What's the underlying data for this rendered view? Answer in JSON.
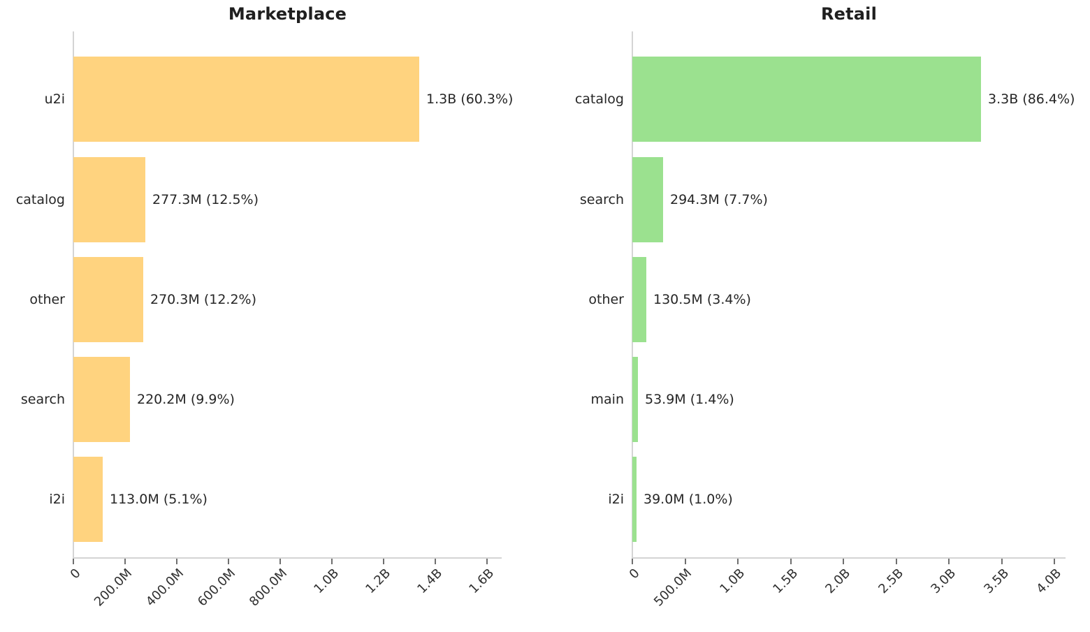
{
  "figure": {
    "background": "#ffffff"
  },
  "colors": {
    "text": "#262626",
    "tick_text": "#303030",
    "spine": "#d4d4d4",
    "tick_mark": "#6f6f6f",
    "marketplace_bar": "#FFD37F",
    "retail_bar": "#9BE18F"
  },
  "chart_data": [
    {
      "type": "bar",
      "orientation": "horizontal",
      "title": "Marketplace",
      "bar_color": "#FFD37F",
      "categories": [
        "u2i",
        "catalog",
        "other",
        "search",
        "i2i"
      ],
      "values_millions": [
        1337.5,
        277.3,
        270.3,
        220.2,
        113.0
      ],
      "percents": [
        60.3,
        12.5,
        12.2,
        9.9,
        5.1
      ],
      "bar_labels": [
        "1.3B (60.3%)",
        "277.3M (12.5%)",
        "270.3M (12.2%)",
        "220.2M (9.9%)",
        "113.0M (5.1%)"
      ],
      "x_ticks": [
        "0",
        "200.0M",
        "400.0M",
        "600.0M",
        "800.0M",
        "1.0B",
        "1.2B",
        "1.4B",
        "1.6B"
      ],
      "xlim_millions": [
        0,
        1600
      ],
      "grid": false,
      "legend": null
    },
    {
      "type": "bar",
      "orientation": "horizontal",
      "title": "Retail",
      "bar_color": "#9BE18F",
      "categories": [
        "catalog",
        "search",
        "other",
        "main",
        "i2i"
      ],
      "values_millions": [
        3302.0,
        294.3,
        130.5,
        53.9,
        39.0
      ],
      "percents": [
        86.4,
        7.7,
        3.4,
        1.4,
        1.0
      ],
      "bar_labels": [
        "3.3B (86.4%)",
        "294.3M (7.7%)",
        "130.5M (3.4%)",
        "53.9M (1.4%)",
        "39.0M (1.0%)"
      ],
      "x_ticks": [
        "0",
        "500.0M",
        "1.0B",
        "1.5B",
        "2.0B",
        "2.5B",
        "3.0B",
        "3.5B",
        "4.0B"
      ],
      "xlim_millions": [
        0,
        4000
      ],
      "grid": false,
      "legend": null
    }
  ]
}
